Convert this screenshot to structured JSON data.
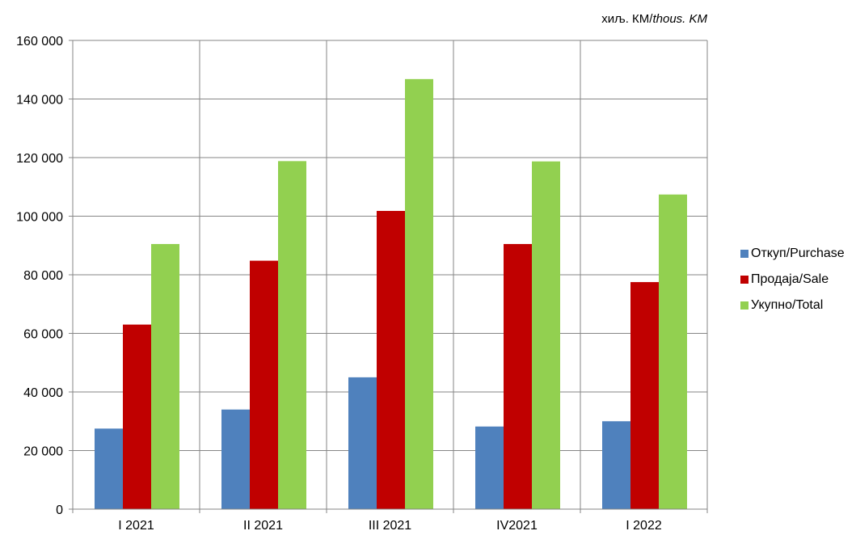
{
  "chart_data": {
    "type": "bar",
    "unit_prefix": "хиљ. КМ/",
    "unit_suffix": "thous. KM",
    "categories": [
      "I 2021",
      "II 2021",
      "III 2021",
      "IV2021",
      "I 2022"
    ],
    "series": [
      {
        "name": "Откуп/Purchase",
        "color": "#4f81bd",
        "values": [
          27500,
          34000,
          45000,
          28200,
          30000
        ]
      },
      {
        "name": "Продаја/Sale",
        "color": "#c00000",
        "values": [
          63000,
          84800,
          101800,
          90500,
          77500
        ]
      },
      {
        "name": "Укупно/Total",
        "color": "#92d050",
        "values": [
          90500,
          118800,
          146800,
          118700,
          107400
        ]
      }
    ],
    "ylim": [
      0,
      160000
    ],
    "yticks": [
      "0",
      "20 000",
      "40 000",
      "60 000",
      "80 000",
      "100 000",
      "120 000",
      "140 000",
      "160 000"
    ],
    "grid": true,
    "legend_position": "right"
  }
}
